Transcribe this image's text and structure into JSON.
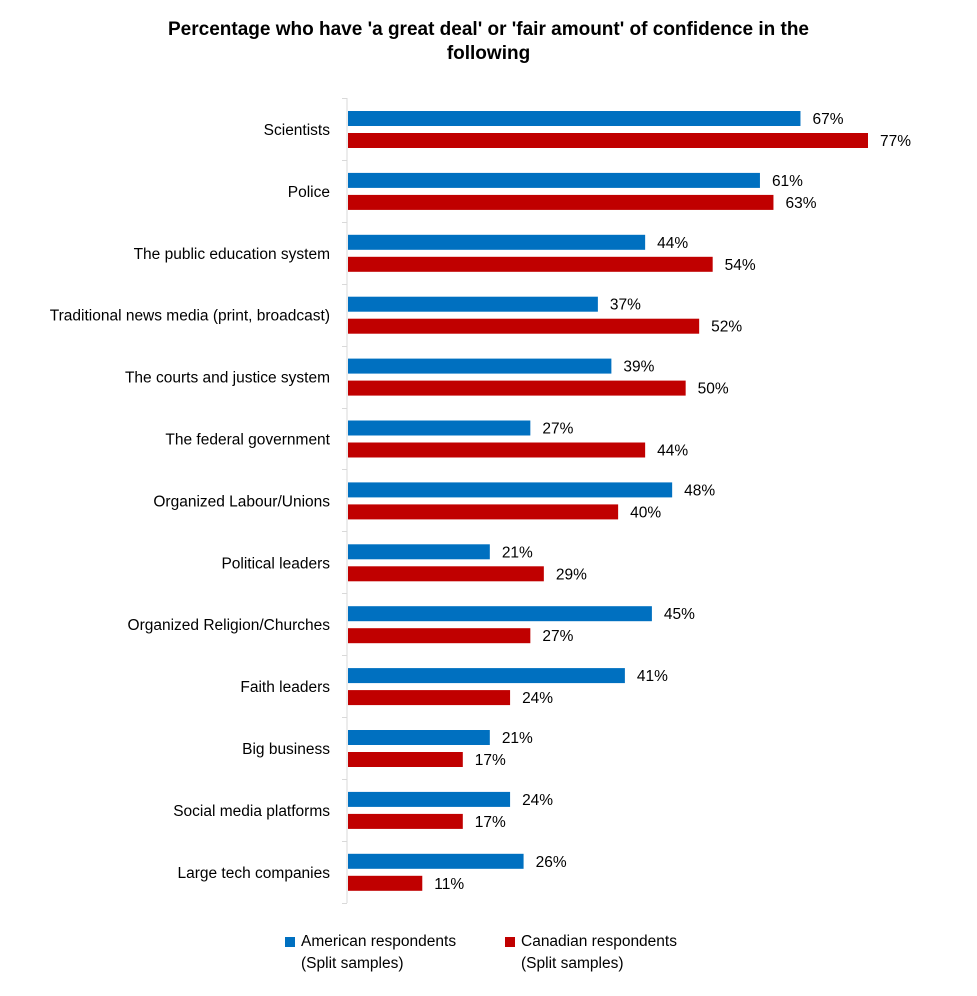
{
  "chart_data": {
    "type": "bar",
    "orientation": "horizontal",
    "title": "Percentage who have 'a great deal' or 'fair amount' of confidence in the following",
    "title_lines": [
      "Percentage who have 'a great deal' or 'fair amount' of confidence in the",
      "following"
    ],
    "categories": [
      "Scientists",
      "Police",
      "The public education system",
      "Traditional news media (print, broadcast)",
      "The courts and justice system",
      "The federal government",
      "Organized Labour/Unions",
      "Political leaders",
      "Organized Religion/Churches",
      "Faith leaders",
      "Big business",
      "Social media platforms",
      "Large tech companies"
    ],
    "series": [
      {
        "name": "American respondents\n(Split samples)",
        "color": "#0070C0",
        "values": [
          67,
          61,
          44,
          37,
          39,
          27,
          48,
          21,
          45,
          41,
          21,
          24,
          26
        ]
      },
      {
        "name": "Canadian respondents\n(Split samples)",
        "color": "#C00000",
        "values": [
          77,
          63,
          54,
          52,
          50,
          44,
          40,
          29,
          27,
          24,
          17,
          17,
          11
        ]
      }
    ],
    "value_suffix": "%",
    "xlim": [
      0,
      77
    ],
    "grid": false,
    "legend_position": "bottom"
  }
}
